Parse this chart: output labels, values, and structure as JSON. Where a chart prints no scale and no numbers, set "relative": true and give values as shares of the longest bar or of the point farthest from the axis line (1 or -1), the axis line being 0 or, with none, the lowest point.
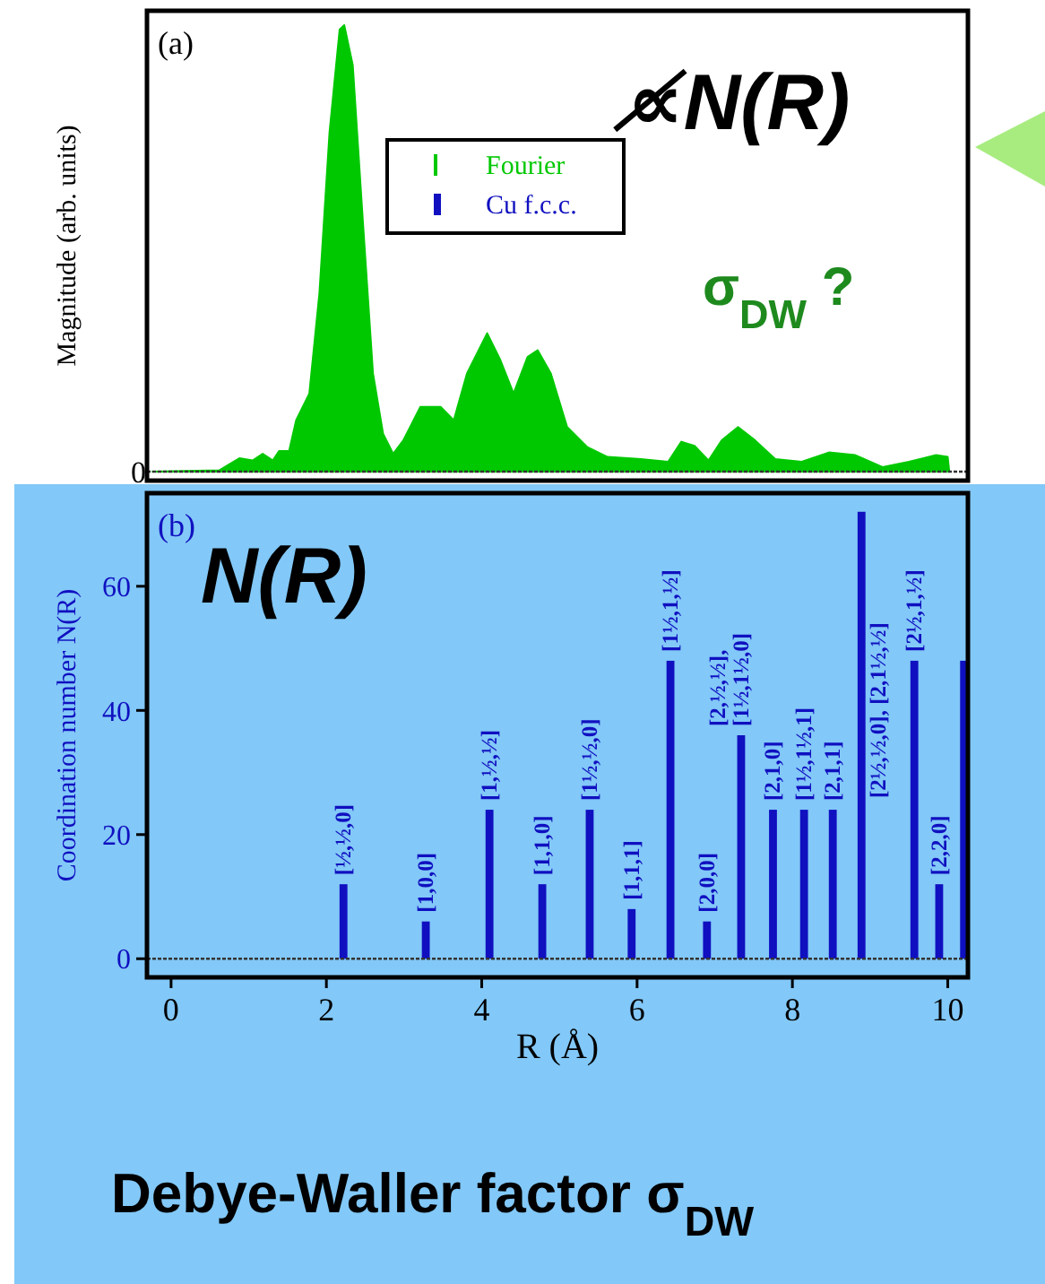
{
  "chart_data": [
    {
      "type": "area",
      "title": "(a)",
      "ylabel": "Magnitude (arb. units)",
      "relative": true,
      "legend": "top",
      "xlim": [
        -0.31,
        10.26
      ],
      "series": [
        {
          "name": "Fourier",
          "color": "#00c800",
          "x": [
            -0.24,
            0.62,
            0.88,
            1.05,
            1.18,
            1.31,
            1.39,
            1.52,
            1.61,
            1.78,
            1.91,
            2.04,
            2.17,
            2.23,
            2.34,
            2.47,
            2.6,
            2.73,
            2.86,
            2.99,
            3.21,
            3.47,
            3.64,
            3.81,
            4.07,
            4.24,
            4.41,
            4.59,
            4.72,
            4.89,
            5.1,
            5.36,
            5.62,
            6.05,
            6.4,
            6.57,
            6.74,
            6.92,
            7.09,
            7.3,
            7.52,
            7.78,
            8.12,
            8.47,
            8.81,
            9.16,
            9.5,
            9.85,
            10.0,
            10.02
          ],
          "values": [
            0,
            0.003,
            0.03,
            0.025,
            0.04,
            0.025,
            0.046,
            0.046,
            0.115,
            0.175,
            0.4,
            0.76,
            0.99,
            1,
            0.91,
            0.56,
            0.22,
            0.085,
            0.04,
            0.07,
            0.145,
            0.145,
            0.115,
            0.22,
            0.31,
            0.25,
            0.175,
            0.257,
            0.272,
            0.22,
            0.1,
            0.055,
            0.033,
            0.028,
            0.022,
            0.067,
            0.058,
            0.025,
            0.07,
            0.1,
            0.07,
            0.028,
            0.022,
            0.043,
            0.037,
            0.01,
            0.022,
            0.037,
            0.033,
            0
          ]
        }
      ],
      "annotations": [
        "0",
        "∝̸N(R)",
        "σ$_{DW}$ ?"
      ]
    },
    {
      "type": "bar",
      "title": "(b)",
      "xlabel": "R (Å)",
      "ylabel": "Coordination number N(R)",
      "xlim": [
        -0.31,
        10.26
      ],
      "ylim": [
        -3,
        75
      ],
      "xticks": [
        0,
        2,
        4,
        6,
        8,
        10
      ],
      "yticks": [
        0,
        20,
        40,
        60
      ],
      "x": [
        2.22,
        3.28,
        4.1,
        4.78,
        5.39,
        5.93,
        6.43,
        6.9,
        7.34,
        7.75,
        8.15,
        8.52,
        8.89,
        9.57,
        9.89,
        10.21
      ],
      "series": [
        {
          "name": "Cu f.c.c.",
          "color": "#1010c0",
          "values": [
            12,
            6,
            24,
            12,
            24,
            8,
            48,
            6,
            36,
            24,
            24,
            24,
            72,
            48,
            12,
            48
          ]
        }
      ],
      "annotations": [
        {
          "text": "[½,½,0]",
          "x": 2.22,
          "y": 12
        },
        {
          "text": "[1,0,0]",
          "x": 3.28,
          "y": 6
        },
        {
          "text": "[1,½,½]",
          "x": 4.1,
          "y": 24
        },
        {
          "text": "[1,1,0]",
          "x": 4.78,
          "y": 12
        },
        {
          "text": "[1½,½,0]",
          "x": 5.39,
          "y": 24
        },
        {
          "text": "[1,1,1]",
          "x": 5.93,
          "y": 8
        },
        {
          "text": "[1½,1,½]",
          "x": 6.43,
          "y": 48
        },
        {
          "text": "[2,0,0]",
          "x": 6.9,
          "y": 6
        },
        {
          "text": "[2,½,½],\n[1½,1½,0]",
          "x": 7.34,
          "y": 36
        },
        {
          "text": "[2,1,0]",
          "x": 7.75,
          "y": 24
        },
        {
          "text": "[1½,1½,1]",
          "x": 8.15,
          "y": 24
        },
        {
          "text": "[2,1,1]",
          "x": 8.52,
          "y": 24
        },
        "[2½,½,0], [2,1½,½]",
        {
          "text": "[2½,1,½]",
          "x": 9.57,
          "y": 48
        },
        {
          "text": "[2,2,0]",
          "x": 9.89,
          "y": 12
        },
        "N(R)",
        "Debye-Waller factor σ$_{DW}$"
      ]
    }
  ]
}
